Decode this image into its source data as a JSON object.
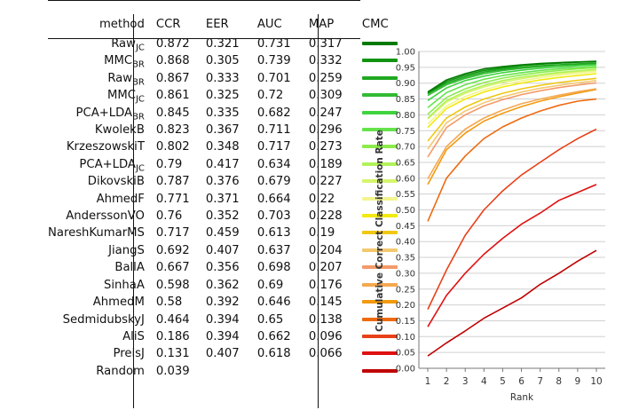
{
  "table": {
    "headers": [
      "method",
      "CCR",
      "EER",
      "AUC",
      "MAP",
      "CMC"
    ],
    "rows": [
      {
        "method": "Raw",
        "sub": "JC",
        "ccr": "0.872",
        "eer": "0.321",
        "auc": "0.731",
        "map": "0.317",
        "color": "#007a00"
      },
      {
        "method": "MMC",
        "sub": "BR",
        "ccr": "0.868",
        "eer": "0.305",
        "auc": "0.739",
        "map": "0.332",
        "color": "#129412"
      },
      {
        "method": "Raw",
        "sub": "BR",
        "ccr": "0.867",
        "eer": "0.333",
        "auc": "0.701",
        "map": "0.259",
        "color": "#1fa81f"
      },
      {
        "method": "MMC",
        "sub": "JC",
        "ccr": "0.861",
        "eer": "0.325",
        "auc": "0.72",
        "map": "0.309",
        "color": "#33bb33"
      },
      {
        "method": "PCA+LDA",
        "sub": "BR",
        "ccr": "0.845",
        "eer": "0.335",
        "auc": "0.682",
        "map": "0.247",
        "color": "#3fd43f"
      },
      {
        "method": "KwolekB",
        "sub": "",
        "ccr": "0.823",
        "eer": "0.367",
        "auc": "0.711",
        "map": "0.296",
        "color": "#66e34c"
      },
      {
        "method": "KrzeszowskiT",
        "sub": "",
        "ccr": "0.802",
        "eer": "0.348",
        "auc": "0.717",
        "map": "0.273",
        "color": "#8cec4c"
      },
      {
        "method": "PCA+LDA",
        "sub": "JC",
        "ccr": "0.79",
        "eer": "0.417",
        "auc": "0.634",
        "map": "0.189",
        "color": "#b2f25a"
      },
      {
        "method": "DikovskiB",
        "sub": "",
        "ccr": "0.787",
        "eer": "0.376",
        "auc": "0.679",
        "map": "0.227",
        "color": "#d6f56e"
      },
      {
        "method": "AhmedF",
        "sub": "",
        "ccr": "0.771",
        "eer": "0.371",
        "auc": "0.664",
        "map": "0.22",
        "color": "#f3f590"
      },
      {
        "method": "AnderssonVO",
        "sub": "",
        "ccr": "0.76",
        "eer": "0.352",
        "auc": "0.703",
        "map": "0.228",
        "color": "#f2ea10"
      },
      {
        "method": "NareshKumarMS",
        "sub": "",
        "ccr": "0.717",
        "eer": "0.459",
        "auc": "0.613",
        "map": "0.19",
        "color": "#f0c814"
      },
      {
        "method": "JiangS",
        "sub": "",
        "ccr": "0.692",
        "eer": "0.407",
        "auc": "0.637",
        "map": "0.204",
        "color": "#f4c870"
      },
      {
        "method": "BallA",
        "sub": "",
        "ccr": "0.667",
        "eer": "0.356",
        "auc": "0.698",
        "map": "0.207",
        "color": "#f49a6a"
      },
      {
        "method": "SinhaA",
        "sub": "",
        "ccr": "0.598",
        "eer": "0.362",
        "auc": "0.69",
        "map": "0.176",
        "color": "#f4a850"
      },
      {
        "method": "AhmedM",
        "sub": "",
        "ccr": "0.58",
        "eer": "0.392",
        "auc": "0.646",
        "map": "0.145",
        "color": "#f29a10"
      },
      {
        "method": "SedmidubskyJ",
        "sub": "",
        "ccr": "0.464",
        "eer": "0.394",
        "auc": "0.65",
        "map": "0.138",
        "color": "#ee6a10"
      },
      {
        "method": "AliS",
        "sub": "",
        "ccr": "0.186",
        "eer": "0.394",
        "auc": "0.662",
        "map": "0.096",
        "color": "#e84018"
      },
      {
        "method": "PreisJ",
        "sub": "",
        "ccr": "0.131",
        "eer": "0.407",
        "auc": "0.618",
        "map": "0.066",
        "color": "#e01010"
      },
      {
        "method": "Random",
        "sub": "",
        "ccr": "0.039",
        "eer": "",
        "auc": "",
        "map": "",
        "color": "#c00000"
      }
    ]
  },
  "chart_data": {
    "type": "line",
    "ylabel": "Cumulative Correct Classification Rate",
    "xlabel": "Rank",
    "x": [
      1,
      2,
      3,
      4,
      5,
      6,
      7,
      8,
      9,
      10
    ],
    "ylim": [
      0.0,
      1.0
    ],
    "yticks": [
      "0.00",
      "0.05",
      "0.10",
      "0.15",
      "0.20",
      "0.25",
      "0.30",
      "0.35",
      "0.40",
      "0.45",
      "0.50",
      "0.55",
      "0.60",
      "0.65",
      "0.70",
      "0.75",
      "0.80",
      "0.85",
      "0.90",
      "0.95",
      "1.00"
    ],
    "xticks": [
      "1",
      "2",
      "3",
      "4",
      "5",
      "6",
      "7",
      "8",
      "9",
      "10"
    ],
    "grid": true,
    "series": [
      {
        "color": "#007a00",
        "values": [
          0.872,
          0.91,
          0.93,
          0.945,
          0.952,
          0.958,
          0.962,
          0.965,
          0.967,
          0.969
        ]
      },
      {
        "color": "#129412",
        "values": [
          0.868,
          0.905,
          0.925,
          0.94,
          0.948,
          0.955,
          0.96,
          0.963,
          0.966,
          0.968
        ]
      },
      {
        "color": "#1fa81f",
        "values": [
          0.867,
          0.9,
          0.92,
          0.935,
          0.944,
          0.95,
          0.955,
          0.958,
          0.961,
          0.963
        ]
      },
      {
        "color": "#33bb33",
        "values": [
          0.861,
          0.895,
          0.915,
          0.93,
          0.94,
          0.947,
          0.952,
          0.956,
          0.959,
          0.962
        ]
      },
      {
        "color": "#3fd43f",
        "values": [
          0.845,
          0.885,
          0.908,
          0.922,
          0.933,
          0.941,
          0.947,
          0.951,
          0.955,
          0.958
        ]
      },
      {
        "color": "#66e34c",
        "values": [
          0.823,
          0.87,
          0.895,
          0.912,
          0.924,
          0.933,
          0.94,
          0.945,
          0.949,
          0.953
        ]
      },
      {
        "color": "#8cec4c",
        "values": [
          0.802,
          0.855,
          0.882,
          0.902,
          0.916,
          0.926,
          0.934,
          0.94,
          0.945,
          0.949
        ]
      },
      {
        "color": "#b2f25a",
        "values": [
          0.79,
          0.845,
          0.873,
          0.893,
          0.908,
          0.919,
          0.927,
          0.934,
          0.939,
          0.944
        ]
      },
      {
        "color": "#d6f56e",
        "values": [
          0.787,
          0.84,
          0.868,
          0.888,
          0.903,
          0.914,
          0.923,
          0.93,
          0.936,
          0.941
        ]
      },
      {
        "color": "#f3f590",
        "values": [
          0.771,
          0.828,
          0.858,
          0.879,
          0.895,
          0.907,
          0.917,
          0.925,
          0.931,
          0.936
        ]
      },
      {
        "color": "#f2ea10",
        "values": [
          0.76,
          0.82,
          0.85,
          0.872,
          0.888,
          0.9,
          0.91,
          0.918,
          0.924,
          0.93
        ]
      },
      {
        "color": "#f0c814",
        "values": [
          0.717,
          0.79,
          0.825,
          0.85,
          0.868,
          0.882,
          0.893,
          0.902,
          0.909,
          0.915
        ]
      },
      {
        "color": "#f4c870",
        "values": [
          0.692,
          0.775,
          0.812,
          0.838,
          0.857,
          0.872,
          0.884,
          0.893,
          0.901,
          0.908
        ]
      },
      {
        "color": "#f49a6a",
        "values": [
          0.667,
          0.76,
          0.8,
          0.828,
          0.848,
          0.864,
          0.876,
          0.886,
          0.894,
          0.901
        ]
      },
      {
        "color": "#f4a850",
        "values": [
          0.598,
          0.7,
          0.755,
          0.79,
          0.815,
          0.835,
          0.85,
          0.862,
          0.873,
          0.882
        ]
      },
      {
        "color": "#f29a10",
        "values": [
          0.58,
          0.69,
          0.742,
          0.78,
          0.805,
          0.826,
          0.843,
          0.857,
          0.869,
          0.88
        ]
      },
      {
        "color": "#ee6a10",
        "values": [
          0.464,
          0.6,
          0.67,
          0.725,
          0.762,
          0.79,
          0.812,
          0.83,
          0.843,
          0.85
        ]
      },
      {
        "color": "#e84018",
        "values": [
          0.186,
          0.31,
          0.42,
          0.5,
          0.56,
          0.61,
          0.65,
          0.69,
          0.725,
          0.755
        ]
      },
      {
        "color": "#e01010",
        "values": [
          0.131,
          0.23,
          0.3,
          0.36,
          0.41,
          0.455,
          0.49,
          0.53,
          0.555,
          0.58
        ]
      },
      {
        "color": "#c00000",
        "values": [
          0.039,
          0.08,
          0.118,
          0.158,
          0.19,
          0.222,
          0.265,
          0.3,
          0.338,
          0.372
        ]
      }
    ]
  }
}
